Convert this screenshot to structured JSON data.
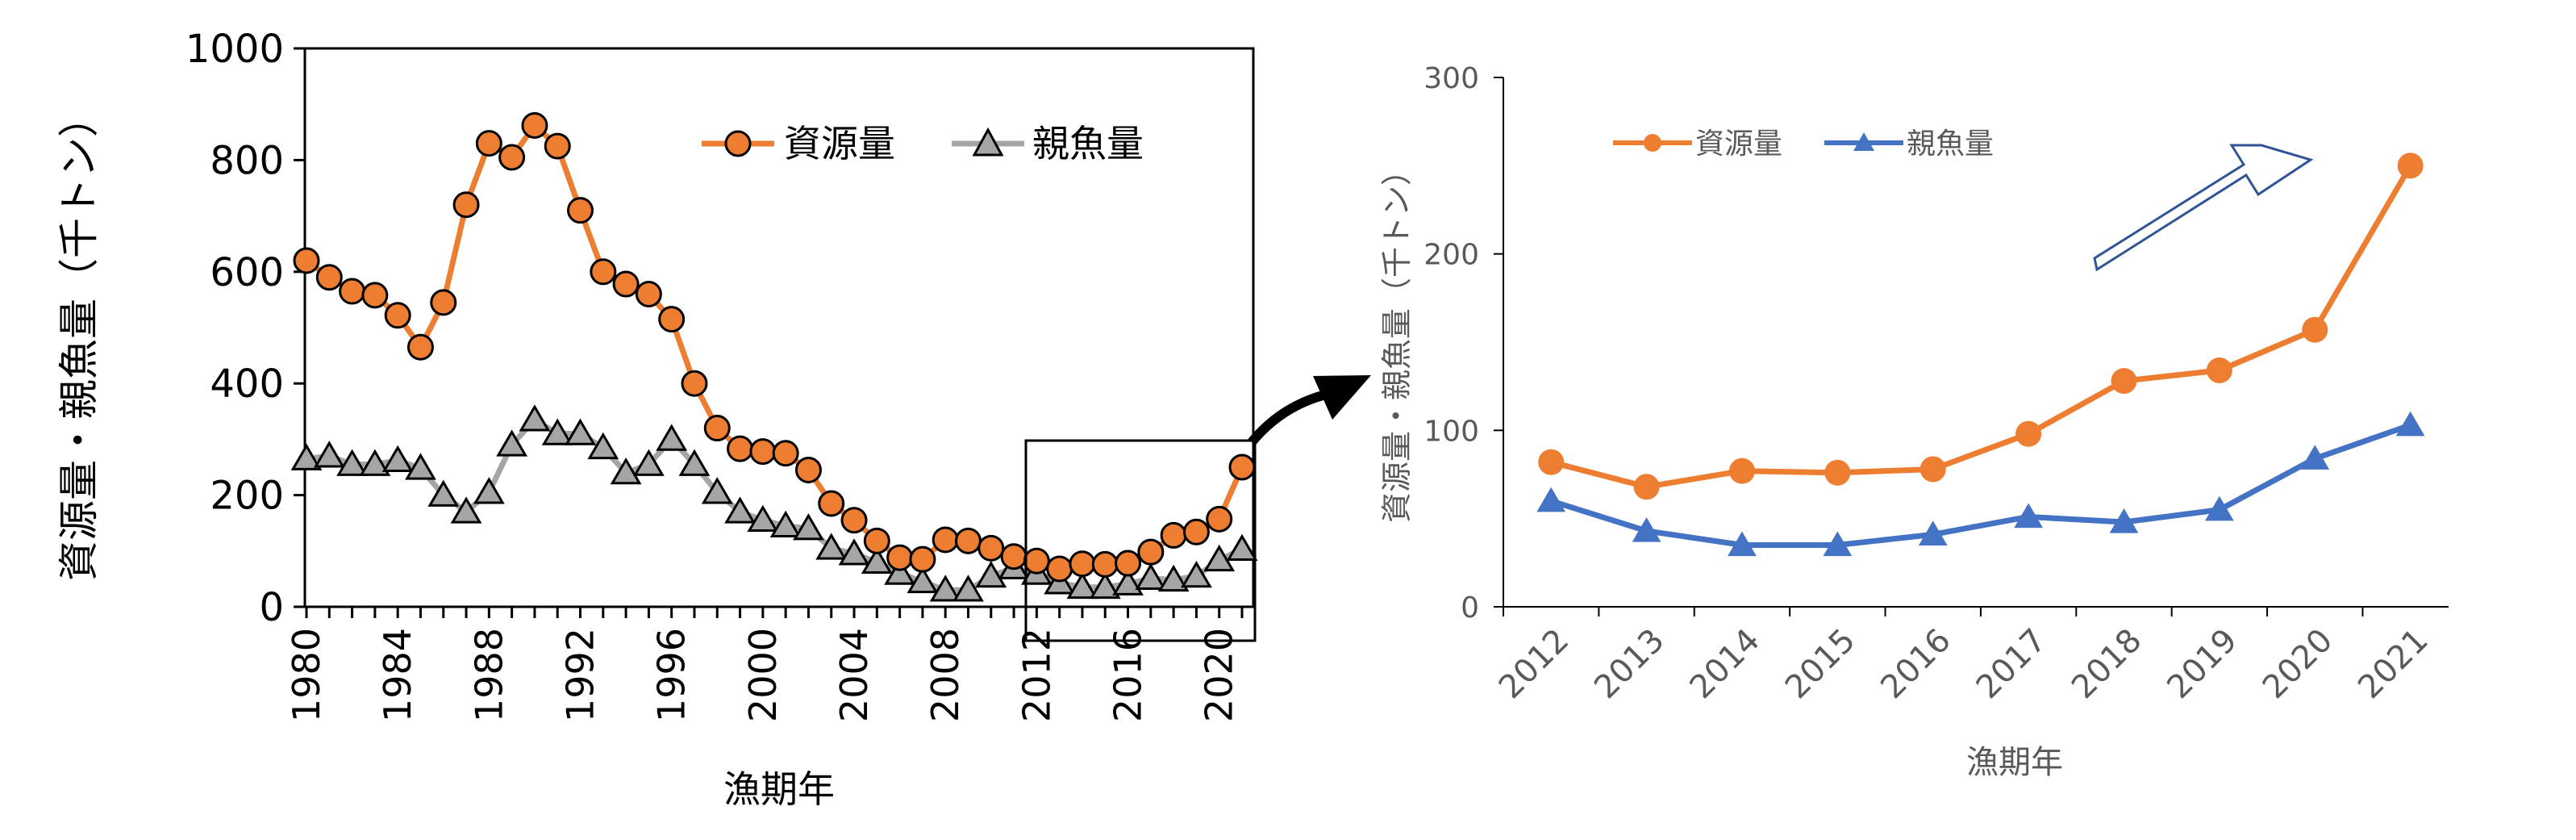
{
  "colors": {
    "stock": "#ED7D31",
    "spawner_left": "#A5A5A5",
    "spawner_right": "#4472C4",
    "axis": "#000000",
    "arrow_outline": "#2F5597"
  },
  "chart_data": [
    {
      "type": "line",
      "xlabel": "漁期年",
      "ylabel": "資源量・親魚量（千トン）",
      "xlim": [
        1980,
        2021
      ],
      "ylim": [
        0,
        1000
      ],
      "yticks": [
        "0",
        "200",
        "400",
        "600",
        "800",
        "1000"
      ],
      "xticks": [
        "1980",
        "1984",
        "1988",
        "1992",
        "1996",
        "2000",
        "2004",
        "2008",
        "2012",
        "2016",
        "2020"
      ],
      "grid": false,
      "legend_position": "top-right",
      "x": [
        1980,
        1981,
        1982,
        1983,
        1984,
        1985,
        1986,
        1987,
        1988,
        1989,
        1990,
        1991,
        1992,
        1993,
        1994,
        1995,
        1996,
        1997,
        1998,
        1999,
        2000,
        2001,
        2002,
        2003,
        2004,
        2005,
        2006,
        2007,
        2008,
        2009,
        2010,
        2011,
        2012,
        2013,
        2014,
        2015,
        2016,
        2017,
        2018,
        2019,
        2020,
        2021
      ],
      "series": [
        {
          "name": "資源量",
          "marker": "circle",
          "values": [
            620,
            590,
            565,
            558,
            522,
            465,
            545,
            720,
            830,
            805,
            862,
            825,
            710,
            600,
            578,
            560,
            515,
            400,
            320,
            283,
            278,
            275,
            245,
            185,
            155,
            118,
            88,
            85,
            120,
            118,
            105,
            90,
            82,
            68,
            77,
            76,
            78,
            98,
            128,
            134,
            157,
            250
          ]
        },
        {
          "name": "親魚量",
          "marker": "triangle",
          "values": [
            265,
            270,
            255,
            255,
            262,
            248,
            200,
            170,
            205,
            290,
            335,
            310,
            310,
            285,
            240,
            255,
            300,
            255,
            205,
            170,
            155,
            145,
            140,
            105,
            95,
            80,
            60,
            45,
            30,
            30,
            55,
            70,
            60,
            43,
            35,
            35,
            41,
            51,
            48,
            55,
            84,
            103
          ]
        }
      ]
    },
    {
      "type": "line",
      "xlabel": "漁期年",
      "ylabel": "資源量・親魚量（千トン）",
      "ylim": [
        0,
        300
      ],
      "yticks": [
        "0",
        "100",
        "200",
        "300"
      ],
      "categories": [
        "2012",
        "2013",
        "2014",
        "2015",
        "2016",
        "2017",
        "2018",
        "2019",
        "2020",
        "2021"
      ],
      "grid": false,
      "legend_position": "top-left",
      "series": [
        {
          "name": "資源量",
          "marker": "circle",
          "values": [
            82,
            68,
            77,
            76,
            78,
            98,
            128,
            134,
            157,
            250
          ]
        },
        {
          "name": "親魚量",
          "marker": "triangle",
          "values": [
            60,
            43,
            35,
            35,
            41,
            51,
            48,
            55,
            84,
            103
          ]
        }
      ]
    }
  ]
}
